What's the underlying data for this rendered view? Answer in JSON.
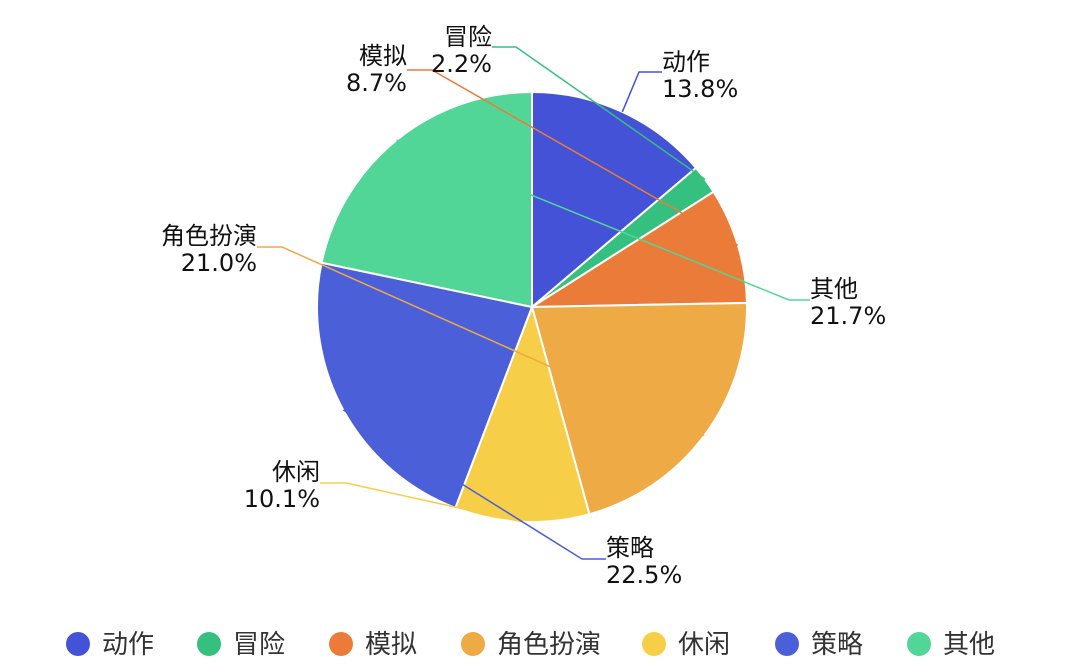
{
  "chart_data": {
    "type": "pie",
    "categories": [
      "动作",
      "冒险",
      "模拟",
      "角色扮演",
      "休闲",
      "策略",
      "其他"
    ],
    "values": [
      13.8,
      2.2,
      8.7,
      21.0,
      10.1,
      22.5,
      21.7
    ],
    "labels": [
      "13.8%",
      "2.2%",
      "8.7%",
      "21.0%",
      "10.1%",
      "22.5%",
      "21.7%"
    ],
    "colors": [
      "#4352d6",
      "#36c07f",
      "#eb7b39",
      "#eeaa45",
      "#f7ce47",
      "#4b5fd9",
      "#52d697"
    ],
    "legend_position": "bottom"
  }
}
